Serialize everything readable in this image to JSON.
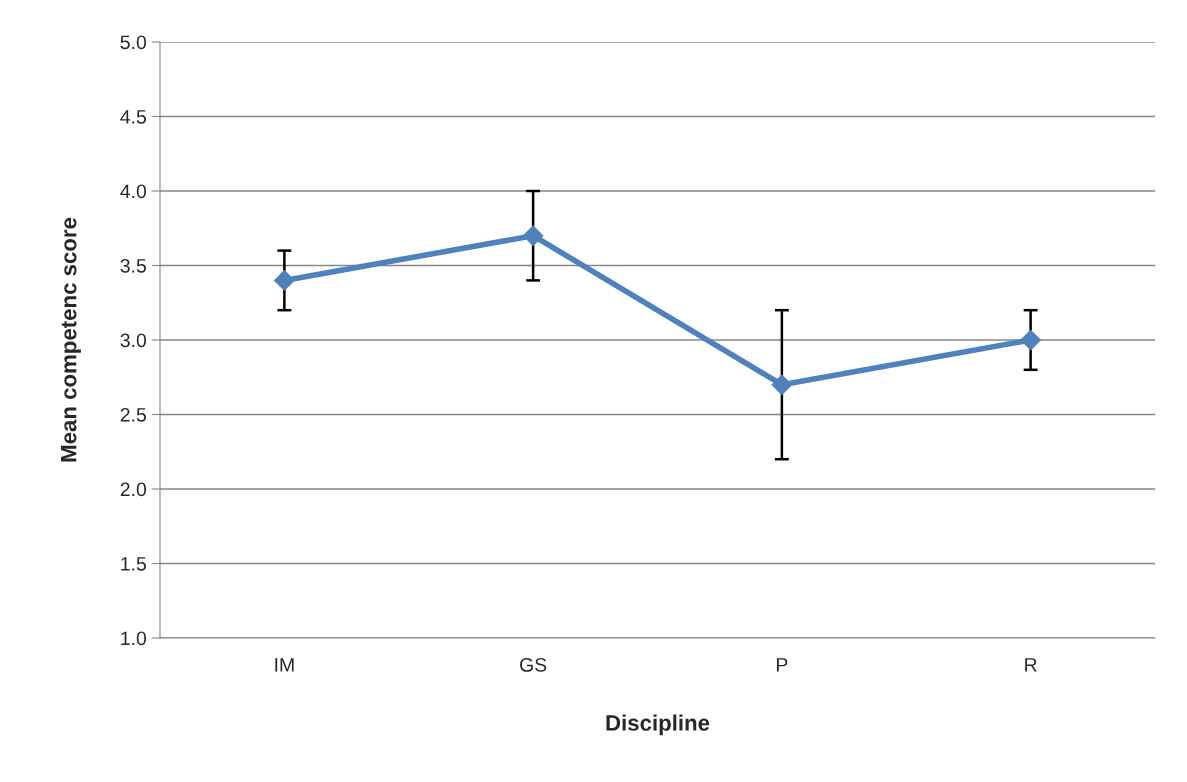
{
  "chart_data": {
    "type": "line",
    "xlabel": "Discipline",
    "ylabel": "Mean competenc score",
    "categories": [
      "IM",
      "GS",
      "P",
      "R"
    ],
    "series": [
      {
        "color": "#4f81bd",
        "values": [
          3.4,
          3.7,
          2.7,
          3.0
        ],
        "errors": [
          0.2,
          0.3,
          0.5,
          0.2
        ]
      }
    ],
    "ylim": [
      1.0,
      5.0
    ],
    "yticks": [
      {
        "value": 1.0,
        "label": "1.0"
      },
      {
        "value": 1.5,
        "label": "1.5"
      },
      {
        "value": 2.0,
        "label": "2.0"
      },
      {
        "value": 2.5,
        "label": "2.5"
      },
      {
        "value": 3.0,
        "label": "3.0"
      },
      {
        "value": 3.5,
        "label": "3.5"
      },
      {
        "value": 4.0,
        "label": "4.0"
      },
      {
        "value": 4.5,
        "label": "4.5"
      },
      {
        "value": 5.0,
        "label": "5.0"
      }
    ],
    "grid": "y",
    "marker": "diamond",
    "line_style": "solid"
  }
}
